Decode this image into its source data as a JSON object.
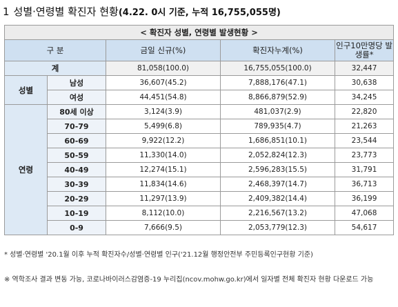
{
  "title": {
    "number": "1",
    "main": "성별·연령별 확진자 현황",
    "sub": "(4.22. 0시 기준, 누적 16,755,055명)"
  },
  "table": {
    "banner": "< 확진자 성별, 연령별 발생현황 >",
    "headers": {
      "group": "구 분",
      "today": "금일 신규(%)",
      "cumulative": "확진자누계(%)",
      "rate": "인구10만명당 발생률*"
    },
    "total": {
      "label": "계",
      "today": "81,058(100.0)",
      "cumulative": "16,755,055(100.0)",
      "rate": "32,447"
    },
    "sex": {
      "label": "성별",
      "rows": [
        {
          "label": "남성",
          "today": "36,607(45.2)",
          "cumulative": "7,888,176(47.1)",
          "rate": "30,638"
        },
        {
          "label": "여성",
          "today": "44,451(54.8)",
          "cumulative": "8,866,879(52.9)",
          "rate": "34,245"
        }
      ]
    },
    "age": {
      "label": "연령",
      "rows": [
        {
          "label": "80세 이상",
          "today": "3,124(3.9)",
          "cumulative": "481,037(2.9)",
          "rate": "22,820"
        },
        {
          "label": "70-79",
          "today": "5,499(6.8)",
          "cumulative": "789,935(4.7)",
          "rate": "21,263"
        },
        {
          "label": "60-69",
          "today": "9,922(12.2)",
          "cumulative": "1,686,851(10.1)",
          "rate": "23,544"
        },
        {
          "label": "50-59",
          "today": "11,330(14.0)",
          "cumulative": "2,052,824(12.3)",
          "rate": "23,773"
        },
        {
          "label": "40-49",
          "today": "12,274(15.1)",
          "cumulative": "2,596,283(15.5)",
          "rate": "31,791"
        },
        {
          "label": "30-39",
          "today": "11,834(14.6)",
          "cumulative": "2,468,397(14.7)",
          "rate": "36,713"
        },
        {
          "label": "20-29",
          "today": "11,297(13.9)",
          "cumulative": "2,409,382(14.4)",
          "rate": "36,199"
        },
        {
          "label": "10-19",
          "today": "8,112(10.0)",
          "cumulative": "2,216,567(13.2)",
          "rate": "47,068"
        },
        {
          "label": "0-9",
          "today": "7,666(9.5)",
          "cumulative": "2,053,779(12.3)",
          "rate": "54,617"
        }
      ]
    }
  },
  "footnotes": {
    "note1": "* 성별·연령별 '20.1월 이후 누적 확진자수/성별·연령별 인구('21.12월 행정안전부 주민등록인구현황 기준)",
    "note2": "※ 역학조사 결과 변동 가능, 코로나바이러스감염증-19 누리집(ncov.mohw.go.kr)에서 일자별 전체 확진자 현황 다운로드 가능"
  }
}
